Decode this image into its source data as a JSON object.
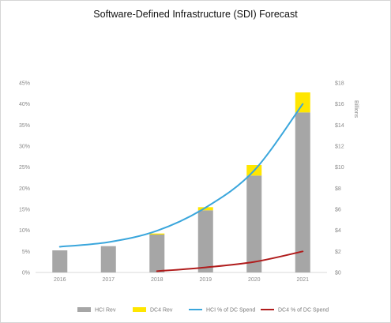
{
  "chart_data": {
    "type": "bar",
    "title": "Software-Defined Infrastructure (SDI) Forecast",
    "categories": [
      "2016",
      "2017",
      "2018",
      "2019",
      "2020",
      "2021"
    ],
    "y_left": {
      "range": [
        0,
        45
      ],
      "ticks": [
        "0%",
        "5%",
        "10%",
        "15%",
        "20%",
        "25%",
        "30%",
        "35%",
        "40%",
        "45%"
      ]
    },
    "y_right": {
      "label": "Billions",
      "range": [
        0,
        18
      ],
      "ticks": [
        "$0",
        "$2",
        "$4",
        "$6",
        "$8",
        "$10",
        "$12",
        "$14",
        "$16",
        "$18"
      ]
    },
    "stacked_bars": [
      {
        "name": "HCI Rev",
        "color": "#a6a6a6",
        "axis": "right",
        "values": [
          2.1,
          2.5,
          3.6,
          5.9,
          9.2,
          15.2
        ]
      },
      {
        "name": "DC4 Rev",
        "color": "#ffe600",
        "axis": "right",
        "values": [
          0,
          0,
          0.1,
          0.3,
          1.0,
          1.9
        ]
      }
    ],
    "lines": [
      {
        "name": "HCI % of DC Spend",
        "color": "#3aa6dc",
        "axis": "left",
        "x_start_index": 0,
        "values": [
          6.1,
          7.2,
          9.9,
          15.4,
          24.2,
          40.0
        ]
      },
      {
        "name": "DC4 % of DC Spend",
        "color": "#b01c1c",
        "axis": "left",
        "x_start_index": 2,
        "values": [
          0.3,
          1.2,
          2.5,
          5.0
        ]
      }
    ],
    "grid": false,
    "legend_position": "bottom"
  }
}
